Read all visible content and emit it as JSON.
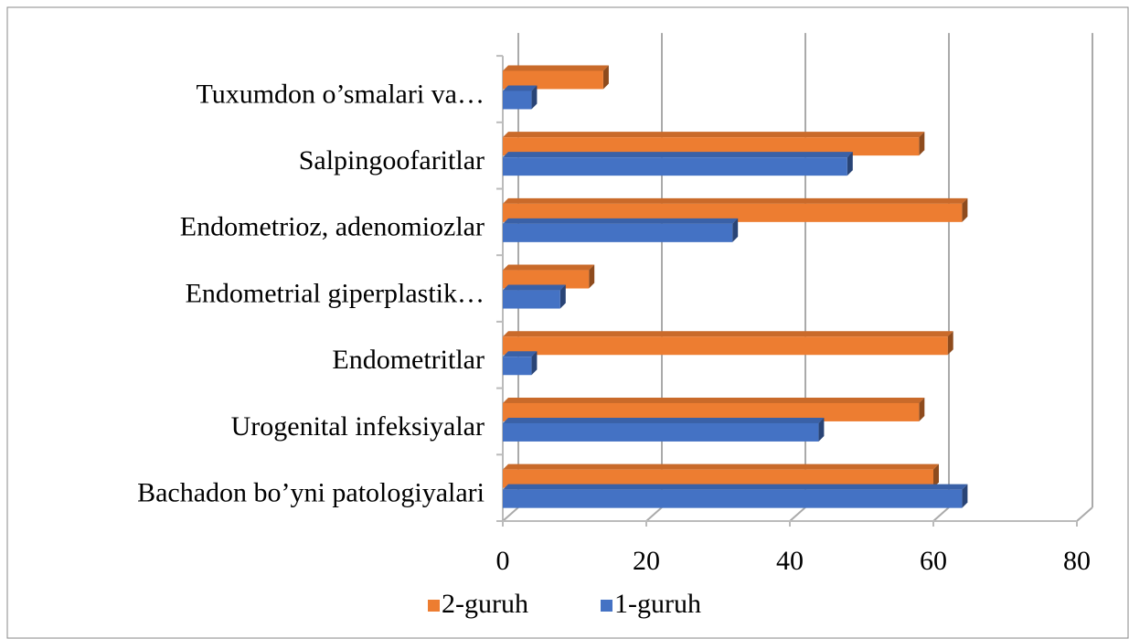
{
  "chart_data": {
    "type": "bar",
    "orientation": "horizontal",
    "categories": [
      "Bachadon bo’yni patologiyalari",
      "Urogenital infeksiyalar",
      "Endometritlar",
      "Endometrial giperplastik…",
      "Endometrioz, adenomiozlar",
      "Salpingoofaritlar",
      "Tuxumdon o’smalari va…"
    ],
    "series": [
      {
        "name": "2-guruh",
        "color": "#ed7d31",
        "values": [
          60,
          58,
          62,
          12,
          64,
          58,
          14
        ]
      },
      {
        "name": "1-guruh",
        "color": "#4472c4",
        "values": [
          64,
          44,
          4,
          8,
          32,
          48,
          4
        ]
      }
    ],
    "xlim": [
      0,
      80
    ],
    "xticks": [
      0,
      20,
      40,
      60,
      80
    ],
    "grid": true,
    "legend": "bottom"
  }
}
